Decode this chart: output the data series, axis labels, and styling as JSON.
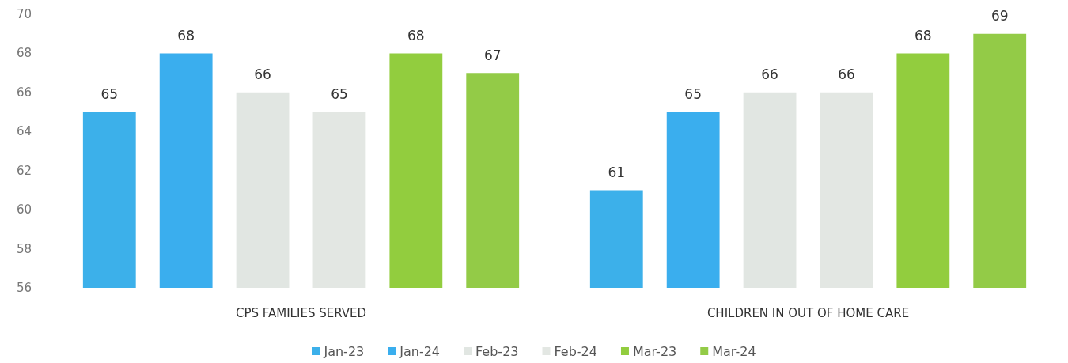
{
  "chart_data": {
    "type": "bar",
    "categories": [
      "CPS FAMILIES SERVED",
      "CHILDREN IN OUT OF HOME CARE"
    ],
    "series": [
      {
        "name": "Jan-23",
        "color": "#3cb0ea",
        "values": [
          65,
          61
        ]
      },
      {
        "name": "Jan-24",
        "color": "#3aaeee",
        "values": [
          68,
          65
        ]
      },
      {
        "name": "Feb-23",
        "color": "#e1e6e2",
        "values": [
          66,
          66
        ]
      },
      {
        "name": "Feb-24",
        "color": "#e3e7e3",
        "values": [
          65,
          66
        ]
      },
      {
        "name": "Mar-23",
        "color": "#92cd3e",
        "values": [
          68,
          68
        ]
      },
      {
        "name": "Mar-24",
        "color": "#93cb47",
        "values": [
          67,
          69
        ]
      }
    ],
    "ylim": [
      56,
      70
    ],
    "yticks": [
      56,
      58,
      60,
      62,
      64,
      66,
      68,
      70
    ],
    "grid": false,
    "legend": "bottom",
    "data_labels": true
  }
}
